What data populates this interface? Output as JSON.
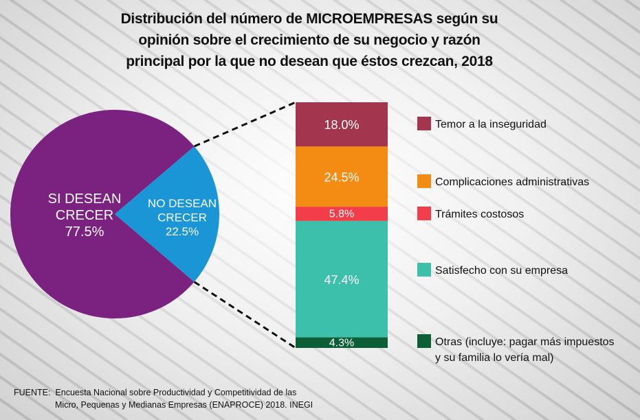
{
  "title_lines": [
    "Distribución del número de MICROEMPRESAS según su",
    "opinión sobre el crecimiento de su negocio y razón",
    "principal por la que no desean que éstos crezcan, 2018"
  ],
  "source": {
    "label": "FUENTE:",
    "line1": "Encuesta Nacional sobre Productividad y Competitividad de las",
    "line2": "Micro, Pequenas y Medianas Empresas (ENAPROCE) 2018. INEGI"
  },
  "chart_data": [
    {
      "type": "pie",
      "slices": [
        {
          "label_lines": [
            "SI  DESEAN",
            "CRECER"
          ],
          "value": 77.5,
          "value_label": "77.5%",
          "color": "#7b2180"
        },
        {
          "label_lines": [
            "NO DESEAN",
            "CRECER"
          ],
          "value": 22.5,
          "value_label": "22.5%",
          "color": "#1a95d6"
        }
      ]
    },
    {
      "type": "bar",
      "stacked": true,
      "segments": [
        {
          "name": "Temor a la inseguridad",
          "value": 18.0,
          "value_label": "18.0%",
          "color": "#a3354f"
        },
        {
          "name": "Complicaciones administrativas",
          "value": 24.5,
          "value_label": "24.5%",
          "color": "#f48c13"
        },
        {
          "name": "Trámites costosos",
          "value": 5.8,
          "value_label": "5.8%",
          "color": "#f33d4a"
        },
        {
          "name": "Satisfecho con su empresa",
          "value": 47.4,
          "value_label": "47.4%",
          "color": "#3cbfab"
        },
        {
          "name_lines": [
            "Otras (incluye: pagar más impuestos",
            "y su familia lo vería mal)"
          ],
          "value": 4.3,
          "value_label": "4.3%",
          "color": "#0b5e36"
        }
      ]
    }
  ]
}
